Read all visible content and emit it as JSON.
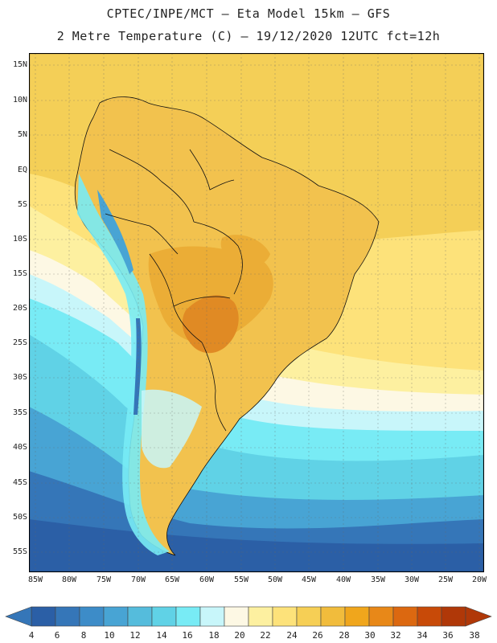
{
  "title": {
    "line1": "CPTEC/INPE/MCT –  Eta Model 15km – GFS",
    "line2": "2 Metre Temperature (C) – 19/12/2020 12UTC fct=12h"
  },
  "map": {
    "lat_labels": [
      "15N",
      "10N",
      "5N",
      "EQ",
      "5S",
      "10S",
      "15S",
      "20S",
      "25S",
      "30S",
      "35S",
      "40S",
      "45S",
      "50S",
      "55S"
    ],
    "lon_labels": [
      "85W",
      "80W",
      "75W",
      "70W",
      "65W",
      "60W",
      "55W",
      "50W",
      "45W",
      "40W",
      "35W",
      "30W",
      "25W",
      "20W"
    ]
  },
  "colorbar": {
    "labels": [
      "4",
      "6",
      "8",
      "10",
      "12",
      "14",
      "16",
      "18",
      "20",
      "22",
      "24",
      "26",
      "28",
      "30",
      "32",
      "34",
      "36",
      "38"
    ],
    "colors": [
      "#2b5fa6",
      "#3576b8",
      "#3d8cc8",
      "#48a4d4",
      "#55bcdc",
      "#60d2e6",
      "#78ebf5",
      "#c8f6fa",
      "#fdf8e4",
      "#fdf0a0",
      "#fde27a",
      "#f6cf55",
      "#f1bc3c",
      "#f0a61c",
      "#e88818",
      "#dc6810",
      "#c84a08",
      "#b03808"
    ]
  }
}
